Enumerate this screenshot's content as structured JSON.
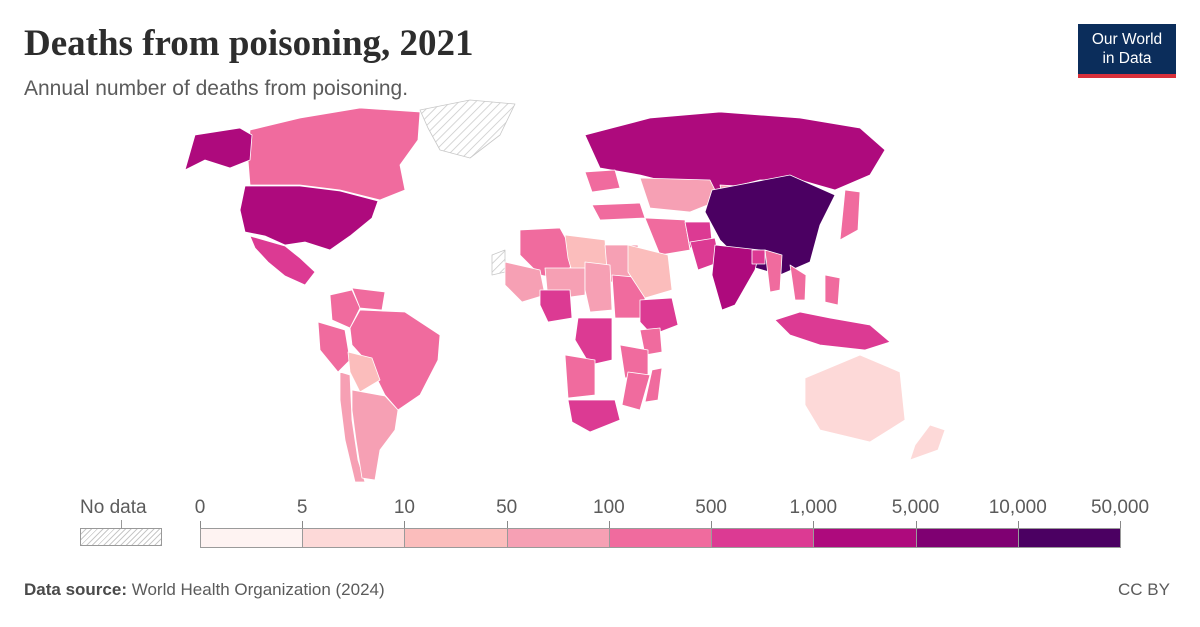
{
  "header": {
    "title": "Deaths from poisoning, 2021",
    "subtitle": "Annual number of deaths from poisoning."
  },
  "logo": {
    "line1": "Our World",
    "line2": "in Data"
  },
  "legend": {
    "no_data_label": "No data",
    "bins": [
      "0",
      "5",
      "10",
      "50",
      "100",
      "500",
      "1,000",
      "5,000",
      "10,000",
      "50,000"
    ],
    "colors": [
      "#fef3f2",
      "#fdd9d8",
      "#fbbdbc",
      "#f6a0b4",
      "#f06b9e",
      "#dc3a93",
      "#ae0a7d",
      "#7f0072",
      "#4b0062"
    ]
  },
  "footer": {
    "source_label": "Data source:",
    "source_text": "World Health Organization (2024)",
    "license": "CC BY"
  },
  "map_data": {
    "China": 8,
    "India": 6,
    "Russia": 6,
    "United States": 6,
    "Pakistan": 5,
    "Afghanistan": 5,
    "Bangladesh": 5,
    "Indonesia": 5,
    "Mexico": 5,
    "Nigeria": 5,
    "Ethiopia": 5,
    "DR Congo": 5,
    "South Africa": 5,
    "Brazil": 4,
    "Canada": 4,
    "Colombia": 4,
    "Peru": 4,
    "Venezuela": 4,
    "Algeria": 4,
    "Sudan": 4,
    "Kenya": 4,
    "Tanzania": 4,
    "Mozambique": 4,
    "Madagascar": 4,
    "Angola": 4,
    "Iran": 4,
    "Turkey": 4,
    "Ukraine": 4,
    "Myanmar": 4,
    "Vietnam": 4,
    "Philippines": 4,
    "Japan": 4,
    "Kazakhstan": 3,
    "Argentina": 3,
    "Chile": 3,
    "Bolivia": 2,
    "Mongolia": 3,
    "Saudi Arabia": 2,
    "Libya": 2,
    "Egypt": 3,
    "Mali": 3,
    "Niger": 3,
    "Chad": 3,
    "Australia": 1,
    "New Zealand": 1,
    "Greenland": null,
    "Western Sahara": null
  }
}
